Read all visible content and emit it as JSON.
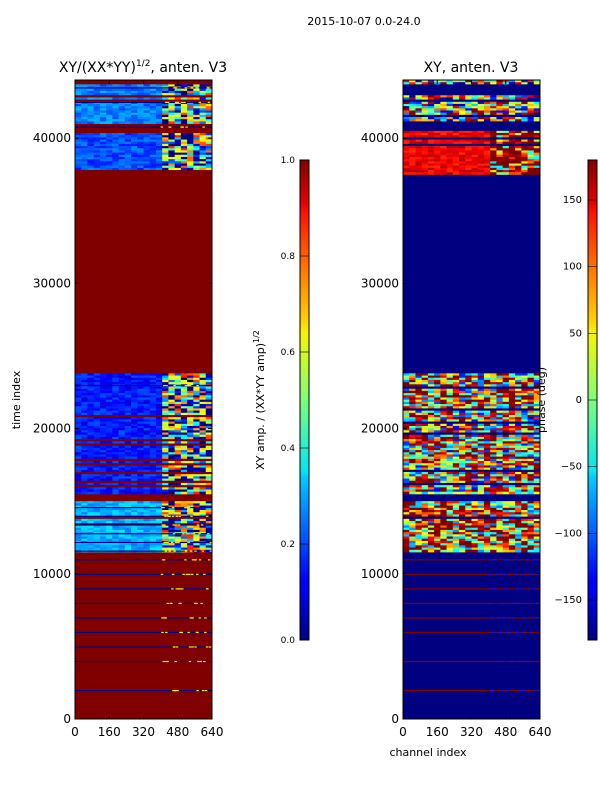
{
  "figure_title": "2015-10-07 0.0-24.0",
  "colors": {
    "low": "#00007f",
    "high": "#7f0000",
    "frame": "#000000"
  },
  "chart_data": [
    {
      "type": "heatmap",
      "title": "XY/(XX*YY)^(1/2), anten. V3",
      "title_main": "XY/(XX*YY)",
      "title_sup": "1/2",
      "title_tail": ", anten. V3",
      "xlabel": "",
      "ylabel": "time index",
      "xlim": [
        0,
        640
      ],
      "ylim": [
        0,
        44000
      ],
      "xticks": [
        0,
        160,
        320,
        480,
        640
      ],
      "yticks": [
        0,
        10000,
        20000,
        30000,
        40000
      ],
      "colorbar": {
        "label_main": "XY amp. / (XX*YY amp)",
        "label_sup": "1/2",
        "range": [
          0.0,
          1.0
        ],
        "ticks": [
          0.0,
          0.2,
          0.4,
          0.6,
          0.8,
          1.0
        ],
        "tick_labels": [
          "0.0",
          "0.2",
          "0.4",
          "0.6",
          "0.8",
          "1.0"
        ]
      },
      "dominant_value": 1.0,
      "bands": [
        {
          "y": [
            37500,
            40500
          ],
          "value": 0.2,
          "varied_from_channel": 400
        },
        {
          "y": [
            41000,
            44000
          ],
          "value": 0.25,
          "varied_from_channel": 400
        },
        {
          "y": [
            15500,
            23800
          ],
          "value": 0.15,
          "varied_from_channel": 400
        },
        {
          "y": [
            11500,
            15000
          ],
          "value": 0.3,
          "varied_from_channel": 400
        }
      ],
      "low_lines": [
        2000,
        4000,
        5000,
        6000,
        7000,
        8000,
        9000,
        10000,
        11000,
        11600,
        12200,
        12800,
        13400,
        14000,
        14600,
        23000,
        40800,
        42500,
        43500
      ]
    },
    {
      "type": "heatmap",
      "title": "XY, anten. V3",
      "xlabel": "channel index",
      "ylabel": "",
      "xlim": [
        0,
        640
      ],
      "ylim": [
        0,
        44000
      ],
      "xticks": [
        0,
        160,
        320,
        480,
        640
      ],
      "yticks": [
        0,
        10000,
        20000,
        30000,
        40000
      ],
      "colorbar": {
        "label_main": "phase (deg)",
        "range": [
          -180,
          180
        ],
        "ticks": [
          150,
          100,
          50,
          0,
          -50,
          -100,
          -150
        ],
        "tick_labels": [
          "150",
          "100",
          "50",
          "0",
          "−50",
          "−100",
          "−150"
        ]
      },
      "dominant_value": -180,
      "bands": [
        {
          "y": [
            37500,
            40500
          ],
          "value": 140,
          "varied_from_channel": 400
        },
        {
          "y": [
            41000,
            44000
          ],
          "value": 20,
          "varied_from_channel": 0
        },
        {
          "y": [
            15500,
            23800
          ],
          "value": 60,
          "varied_from_channel": 0
        },
        {
          "y": [
            11500,
            15000
          ],
          "value": 100,
          "varied_from_channel": 0
        }
      ],
      "high_lines": [
        2000,
        4000,
        6000,
        7000,
        8000,
        9000,
        10000,
        11000
      ]
    }
  ]
}
